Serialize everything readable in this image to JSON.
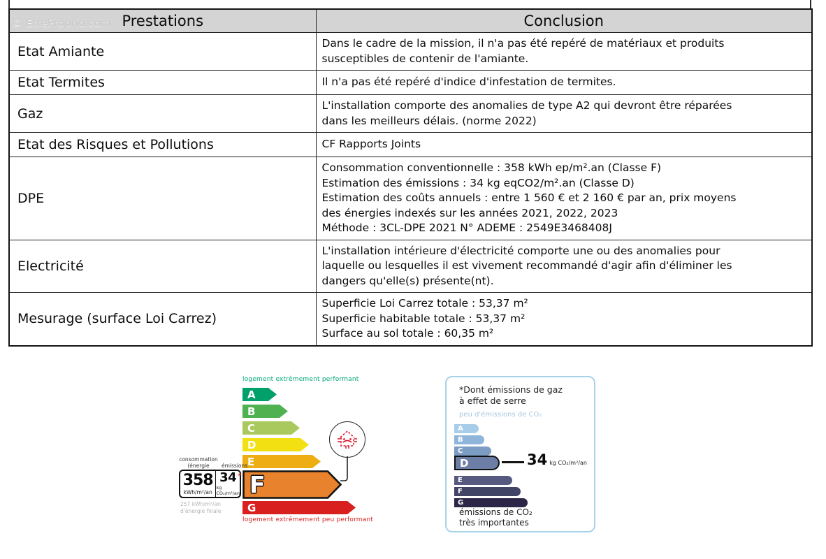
{
  "watermark": "© EtreProprio.com",
  "table": {
    "headers": {
      "prestations": "Prestations",
      "conclusion": "Conclusion"
    },
    "rows": [
      {
        "prestation": "Etat Amiante",
        "conclusion": [
          "Dans le cadre de la mission, il n'a pas été repéré de matériaux et produits",
          "susceptibles de contenir de l'amiante."
        ]
      },
      {
        "prestation": "Etat Termites",
        "conclusion": [
          "Il n'a pas été repéré d'indice d'infestation de termites."
        ]
      },
      {
        "prestation": "Gaz",
        "conclusion": [
          "L'installation comporte des anomalies de type A2 qui devront être réparées",
          "dans les meilleurs délais. (norme 2022)"
        ]
      },
      {
        "prestation": "Etat des Risques et Pollutions",
        "conclusion": [
          "CF Rapports Joints"
        ]
      },
      {
        "prestation": "DPE",
        "conclusion": [
          "Consommation conventionnelle : 358 kWh ep/m².an (Classe F)",
          "Estimation des émissions : 34 kg eqCO2/m².an (Classe D)",
          "Estimation des coûts annuels : entre 1 560 € et 2 160 € par an, prix moyens",
          "des énergies indexés sur les années 2021, 2022, 2023",
          "Méthode : 3CL-DPE 2021 N° ADEME : 2549E3468408J"
        ]
      },
      {
        "prestation": "Electricité",
        "conclusion": [
          "L'installation intérieure d'électricité comporte une ou des anomalies pour",
          "laquelle ou lesquelles il est vivement recommandé d'agir afin d'éliminer les",
          "dangers qu'elle(s) présente(nt)."
        ]
      },
      {
        "prestation": "Mesurage (surface Loi Carrez)",
        "conclusion": [
          "Superficie Loi Carrez totale : 53,37 m²",
          "Superficie habitable totale : 53,37 m²",
          "Surface au sol totale : 60,35 m²"
        ]
      }
    ]
  },
  "chart_data": [
    {
      "type": "bar",
      "name": "dpe-energy-scale",
      "title_top": "logement extrêmement performant",
      "title_bottom": "logement extrêmement peu performant",
      "classes": [
        "A",
        "B",
        "C",
        "D",
        "E",
        "F",
        "G"
      ],
      "colors": [
        "#00a06b",
        "#4fb150",
        "#a9c95e",
        "#f2e013",
        "#eeae13",
        "#e8822d",
        "#d8201f"
      ],
      "widths": [
        49,
        65,
        82,
        95,
        112,
        142,
        162
      ],
      "current_class": "F",
      "consumption": {
        "label_line1": "consommation",
        "label_line2": "(énergie primaire)",
        "value": "358",
        "unit": "kWh/m²/an"
      },
      "emissions": {
        "label": "émissions",
        "value": "34",
        "star": "*",
        "unit": "kg CO₂/m²/an"
      },
      "final_energy_line1": "257 kWh/m²/an",
      "final_energy_line2": "d'énergie finale"
    },
    {
      "type": "bar",
      "name": "ges-emissions-scale",
      "title_line1": "*Dont émissions de gaz",
      "title_line2": "à effet de serre",
      "subtitle": "peu d'émissions de CO₂",
      "classes": [
        "A",
        "B",
        "C",
        "D",
        "E",
        "F",
        "G"
      ],
      "colors": [
        "#a8cde9",
        "#8fb6da",
        "#7b9cc3",
        "#6c7ea6",
        "#565a81",
        "#424466",
        "#2c2547"
      ],
      "widths": [
        35,
        43,
        53,
        65,
        83,
        95,
        105
      ],
      "current_class": "D",
      "value": "34",
      "unit": "kg CO₂/m²/an",
      "footer_line1": "émissions de CO₂",
      "footer_line2": "très importantes"
    }
  ]
}
